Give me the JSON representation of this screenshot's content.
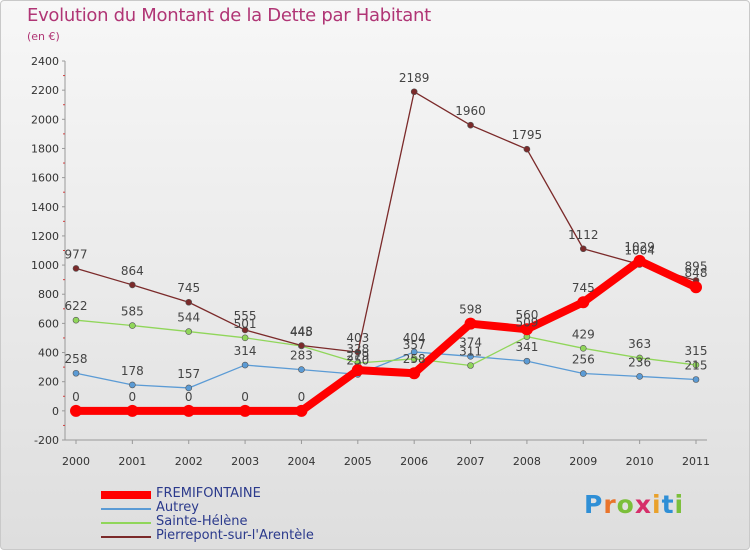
{
  "header": {
    "title": "Evolution du Montant de la Dette par Habitant",
    "subtitle": "(en €)"
  },
  "logo": {
    "letters": [
      "P",
      "r",
      "o",
      "x",
      "i",
      "t",
      "i"
    ],
    "colors": [
      "#2f8fd6",
      "#e9742b",
      "#7bbf3a",
      "#d62f6a",
      "#e9a12b",
      "#2f8fd6",
      "#7bbf3a"
    ]
  },
  "chart_data": {
    "type": "line",
    "title": "Evolution du Montant de la Dette par Habitant",
    "subtitle": "(en €)",
    "x": [
      "2000",
      "2001",
      "2002",
      "2003",
      "2004",
      "2005",
      "2006",
      "2007",
      "2008",
      "2009",
      "2010",
      "2011"
    ],
    "ylim": [
      -200,
      2400
    ],
    "yticks": [
      "-200",
      "0",
      "200",
      "400",
      "600",
      "800",
      "1000",
      "1200",
      "1400",
      "1600",
      "1800",
      "2000",
      "2200",
      "2400"
    ],
    "grid": false,
    "legend_position": "bottom-left",
    "series": [
      {
        "name": "FREMIFONTAINE",
        "color": "#ff0000",
        "values": [
          0,
          0,
          0,
          0,
          0,
          279,
          258,
          598,
          560,
          745,
          1029,
          848
        ],
        "labels": [
          "0",
          "0",
          "0",
          "0",
          "0",
          "279",
          "258",
          "598",
          "560",
          "745",
          "1029",
          "848"
        ]
      },
      {
        "name": "Autrey",
        "color": "#5b9bd5",
        "values": [
          258,
          178,
          157,
          314,
          283,
          250,
          404,
          374,
          341,
          256,
          236,
          215
        ],
        "labels": [
          "258",
          "178",
          "157",
          "314",
          "283",
          "250",
          "404",
          "374",
          "341",
          "256",
          "236",
          "215"
        ]
      },
      {
        "name": "Sainte-Hélène",
        "color": "#90d65a",
        "values": [
          622,
          585,
          544,
          501,
          445,
          328,
          357,
          311,
          509,
          429,
          363,
          315
        ],
        "labels": [
          "622",
          "585",
          "544",
          "501",
          "445",
          "328",
          "357",
          "311",
          "509",
          "429",
          "363",
          "315"
        ]
      },
      {
        "name": "Pierrepont-sur-l'Arentèle",
        "color": "#7b2a2a",
        "values": [
          977,
          864,
          745,
          555,
          448,
          403,
          2189,
          1960,
          1795,
          1112,
          1004,
          895
        ],
        "labels": [
          "977",
          "864",
          "745",
          "555",
          "448",
          "403",
          "2189",
          "1960",
          "1795",
          "1112",
          "1004",
          "895"
        ]
      }
    ]
  }
}
